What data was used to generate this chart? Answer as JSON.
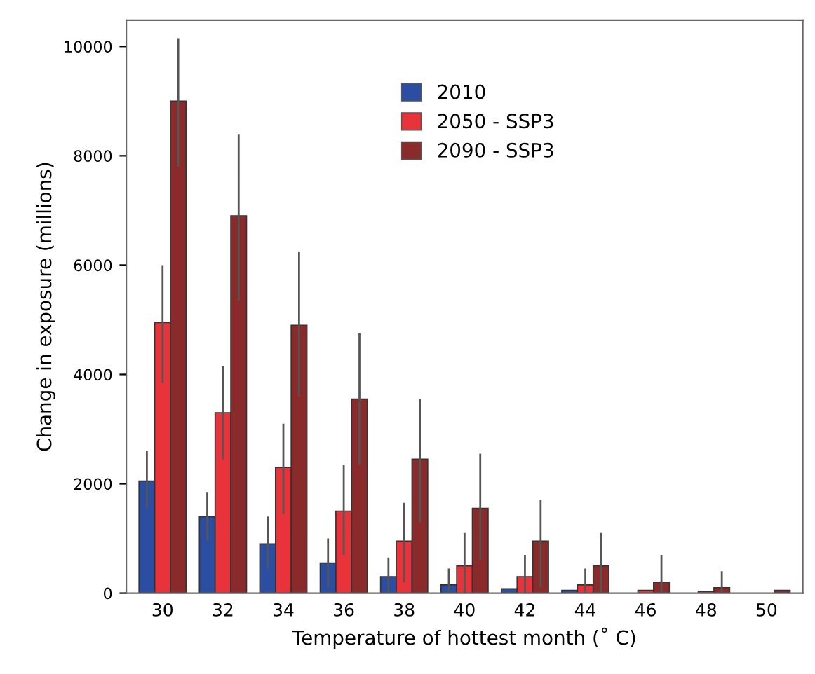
{
  "chart_data": {
    "type": "bar",
    "xlabel": "Temperature of hottest month (˚ C)",
    "ylabel": "Change in exposure (millions)",
    "categories": [
      "30",
      "32",
      "34",
      "36",
      "38",
      "40",
      "42",
      "44",
      "46",
      "48",
      "50"
    ],
    "series": [
      {
        "name": "2010",
        "color": "#2b4ea2",
        "values": [
          2050,
          1400,
          900,
          550,
          300,
          150,
          80,
          50,
          null,
          null,
          null
        ],
        "errors": [
          [
            1550,
            2600
          ],
          [
            950,
            1850
          ],
          [
            450,
            1400
          ],
          [
            100,
            1000
          ],
          [
            0,
            650
          ],
          [
            0,
            450
          ],
          null,
          null,
          null,
          null,
          null
        ]
      },
      {
        "name": "2050 - SSP3",
        "color": "#e8333a",
        "values": [
          4950,
          3300,
          2300,
          1500,
          950,
          500,
          300,
          150,
          50,
          30,
          null
        ],
        "errors": [
          [
            3850,
            6000
          ],
          [
            2450,
            4150
          ],
          [
            1450,
            3100
          ],
          [
            700,
            2350
          ],
          [
            200,
            1650
          ],
          [
            0,
            1100
          ],
          [
            0,
            700
          ],
          [
            0,
            450
          ],
          null,
          null,
          null
        ]
      },
      {
        "name": "2090 - SSP3",
        "color": "#8b2a2a",
        "values": [
          9000,
          6900,
          4900,
          3550,
          2450,
          1550,
          950,
          500,
          200,
          100,
          50
        ],
        "errors": [
          [
            7800,
            10150
          ],
          [
            5350,
            8400
          ],
          [
            3600,
            6250
          ],
          [
            2350,
            4750
          ],
          [
            1300,
            3550
          ],
          [
            600,
            2550
          ],
          [
            100,
            1700
          ],
          [
            0,
            1100
          ],
          [
            0,
            700
          ],
          [
            0,
            400
          ],
          null
        ]
      }
    ],
    "ylim": [
      0,
      10480
    ],
    "yticks": [
      0,
      2000,
      4000,
      6000,
      8000,
      10000
    ],
    "grid": false,
    "legend": "top"
  }
}
